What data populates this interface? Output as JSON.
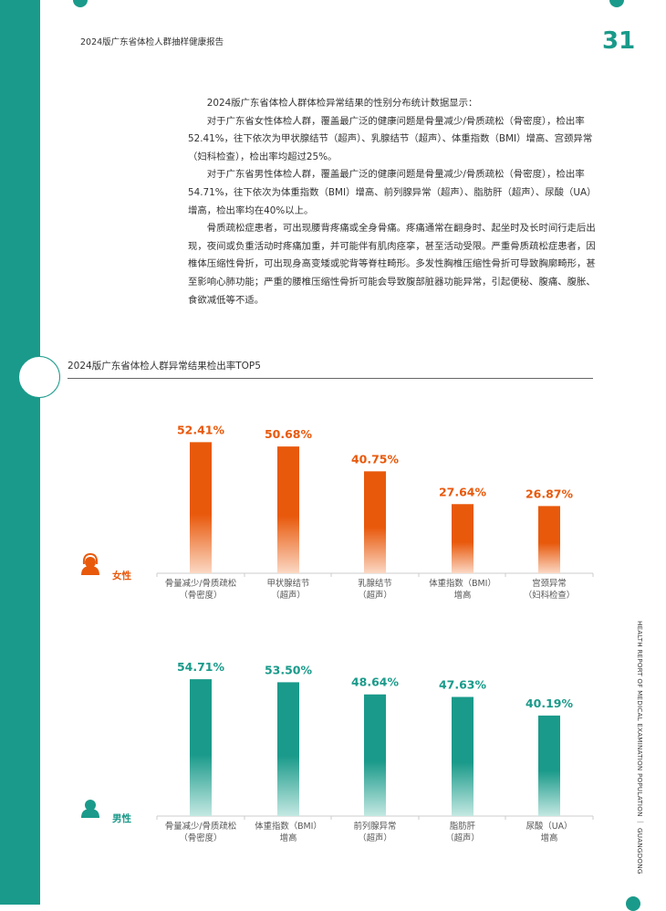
{
  "header": {
    "title": "2024版广东省体检人群抽样健康报告",
    "page_number": "31"
  },
  "body": {
    "paragraphs": [
      "2024版广东省体检人群体检异常结果的性别分布统计数据显示：",
      "对于广东省女性体检人群，覆盖最广泛的健康问题是骨量减少/骨质疏松（骨密度），检出率52.41%，往下依次为甲状腺结节（超声）、乳腺结节（超声）、体重指数（BMI）增高、宫颈异常（妇科检查），检出率均超过25%。",
      "对于广东省男性体检人群，覆盖最广泛的健康问题是骨量减少/骨质疏松（骨密度），检出率54.71%，往下依次为体重指数（BMI）增高、前列腺异常（超声）、脂肪肝（超声）、尿酸（UA）增高，检出率均在40%以上。",
      "骨质疏松症患者，可出现腰背疼痛或全身骨痛。疼痛通常在翻身时、起坐时及长时间行走后出现，夜间或负重活动时疼痛加重，并可能伴有肌肉痉挛，甚至活动受限。严重骨质疏松症患者，因椎体压缩性骨折，可出现身高变矮或驼背等脊柱畸形。多发性胸椎压缩性骨折可导致胸廓畸形，甚至影响心肺功能；严重的腰椎压缩性骨折可能会导致腹部脏器功能异常，引起便秘、腹痛、腹胀、食欲减低等不适。"
    ]
  },
  "side_caption": "HEALTH REPORT OF MEDICAL EXAMINATION POPULATION ｜ GUANGDONG",
  "chart_data": [
    {
      "type": "bar",
      "title": "2024版广东省体检人群异常结果检出率TOP5",
      "group_label": "女性",
      "icon": "female-user-icon",
      "color": "#e8590c",
      "categories": [
        [
          "骨量减少/骨质疏松",
          "（骨密度）"
        ],
        [
          "甲状腺结节",
          "（超声）"
        ],
        [
          "乳腺结节",
          "（超声）"
        ],
        [
          "体重指数（BMI）",
          "增高"
        ],
        [
          "宫颈异常",
          "（妇科检查）"
        ]
      ],
      "values": [
        52.41,
        50.68,
        40.75,
        27.64,
        26.87
      ],
      "value_labels": [
        "52.41%",
        "50.68%",
        "40.75%",
        "27.64%",
        "26.87%"
      ],
      "ylim": [
        0,
        100
      ]
    },
    {
      "type": "bar",
      "group_label": "男性",
      "icon": "male-user-icon",
      "color": "#1a9a8a",
      "categories": [
        [
          "骨量减少/骨质疏松",
          "（骨密度）"
        ],
        [
          "体重指数（BMI）",
          "增高"
        ],
        [
          "前列腺异常",
          "（超声）"
        ],
        [
          "脂肪肝",
          "（超声）"
        ],
        [
          "尿酸（UA）",
          "增高"
        ]
      ],
      "values": [
        54.71,
        53.5,
        48.64,
        47.63,
        40.19
      ],
      "value_labels": [
        "54.71%",
        "53.50%",
        "48.64%",
        "47.63%",
        "40.19%"
      ],
      "ylim": [
        0,
        100
      ]
    }
  ]
}
